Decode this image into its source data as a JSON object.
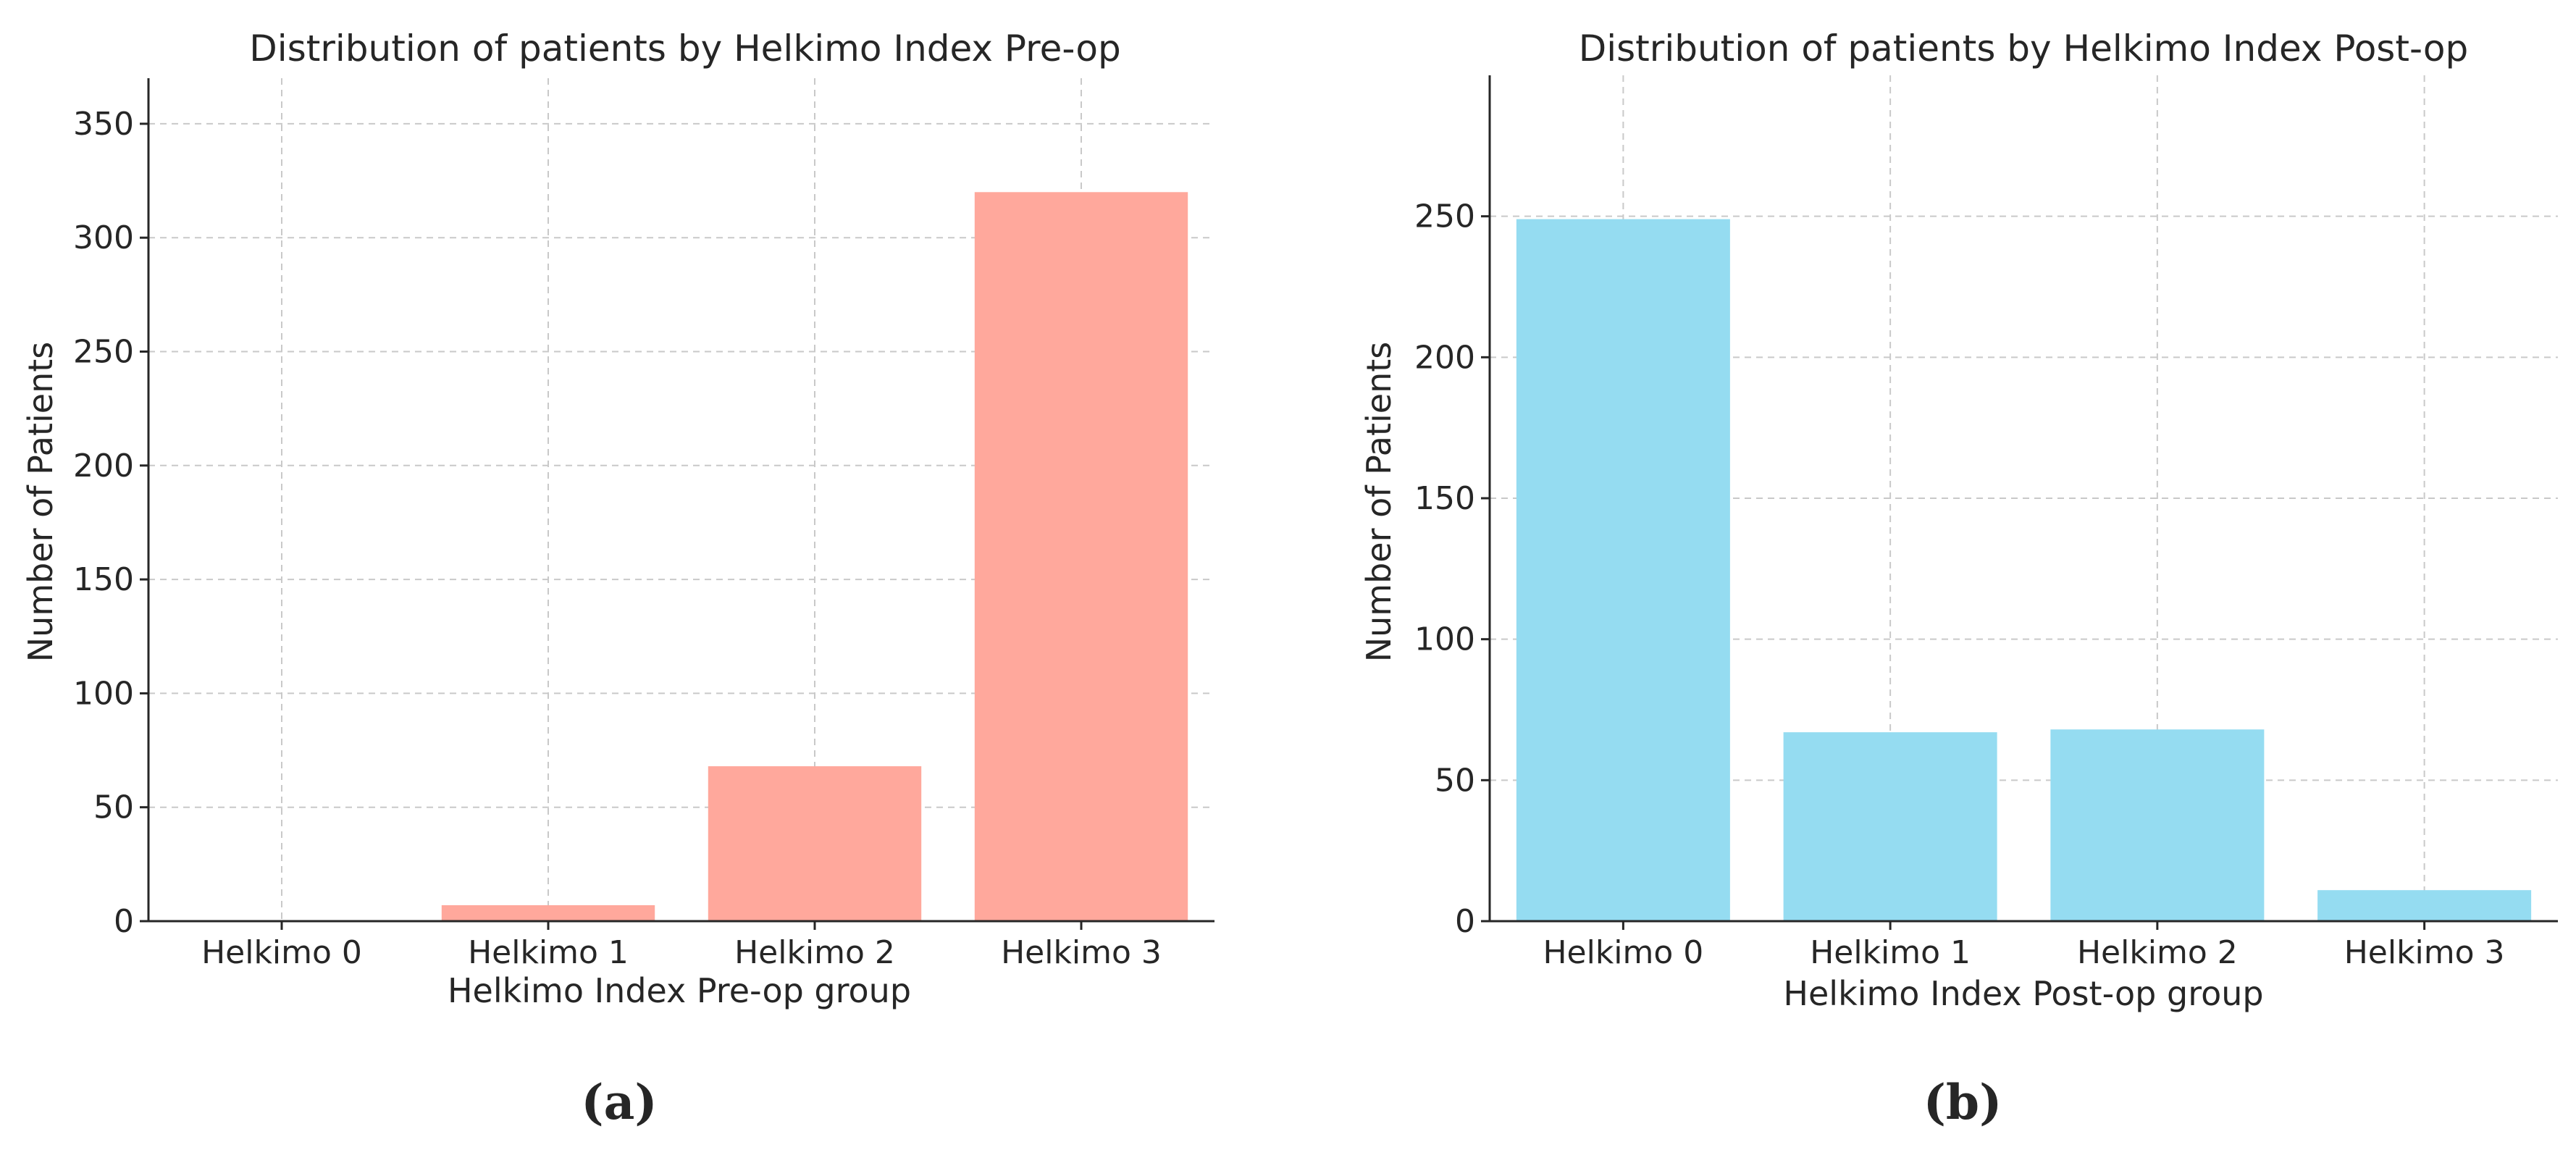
{
  "chart_data": [
    {
      "type": "bar",
      "panel_label": "(a)",
      "title": "Distribution of patients by Helkimo Index Pre-op",
      "xlabel": "Helkimo Index Pre-op group",
      "ylabel": "Number of Patients",
      "categories": [
        "Helkimo 0",
        "Helkimo 1",
        "Helkimo 2",
        "Helkimo 3"
      ],
      "values": [
        0,
        7,
        68,
        320
      ],
      "ylim": [
        0,
        370
      ],
      "yticks": [
        0,
        50,
        100,
        150,
        200,
        250,
        300,
        350
      ],
      "color": "#ffa89c",
      "grid": true
    },
    {
      "type": "bar",
      "panel_label": "(b)",
      "title": "Distribution of patients by Helkimo Index Post-op",
      "xlabel": "Helkimo Index Post-op group",
      "ylabel": "Number of Patients",
      "categories": [
        "Helkimo 0",
        "Helkimo 1",
        "Helkimo 2",
        "Helkimo 3"
      ],
      "values": [
        249,
        67,
        68,
        11
      ],
      "ylim": [
        0,
        300
      ],
      "yticks": [
        0,
        50,
        100,
        150,
        200,
        250
      ],
      "color": "#95dcf1",
      "grid": true
    }
  ]
}
